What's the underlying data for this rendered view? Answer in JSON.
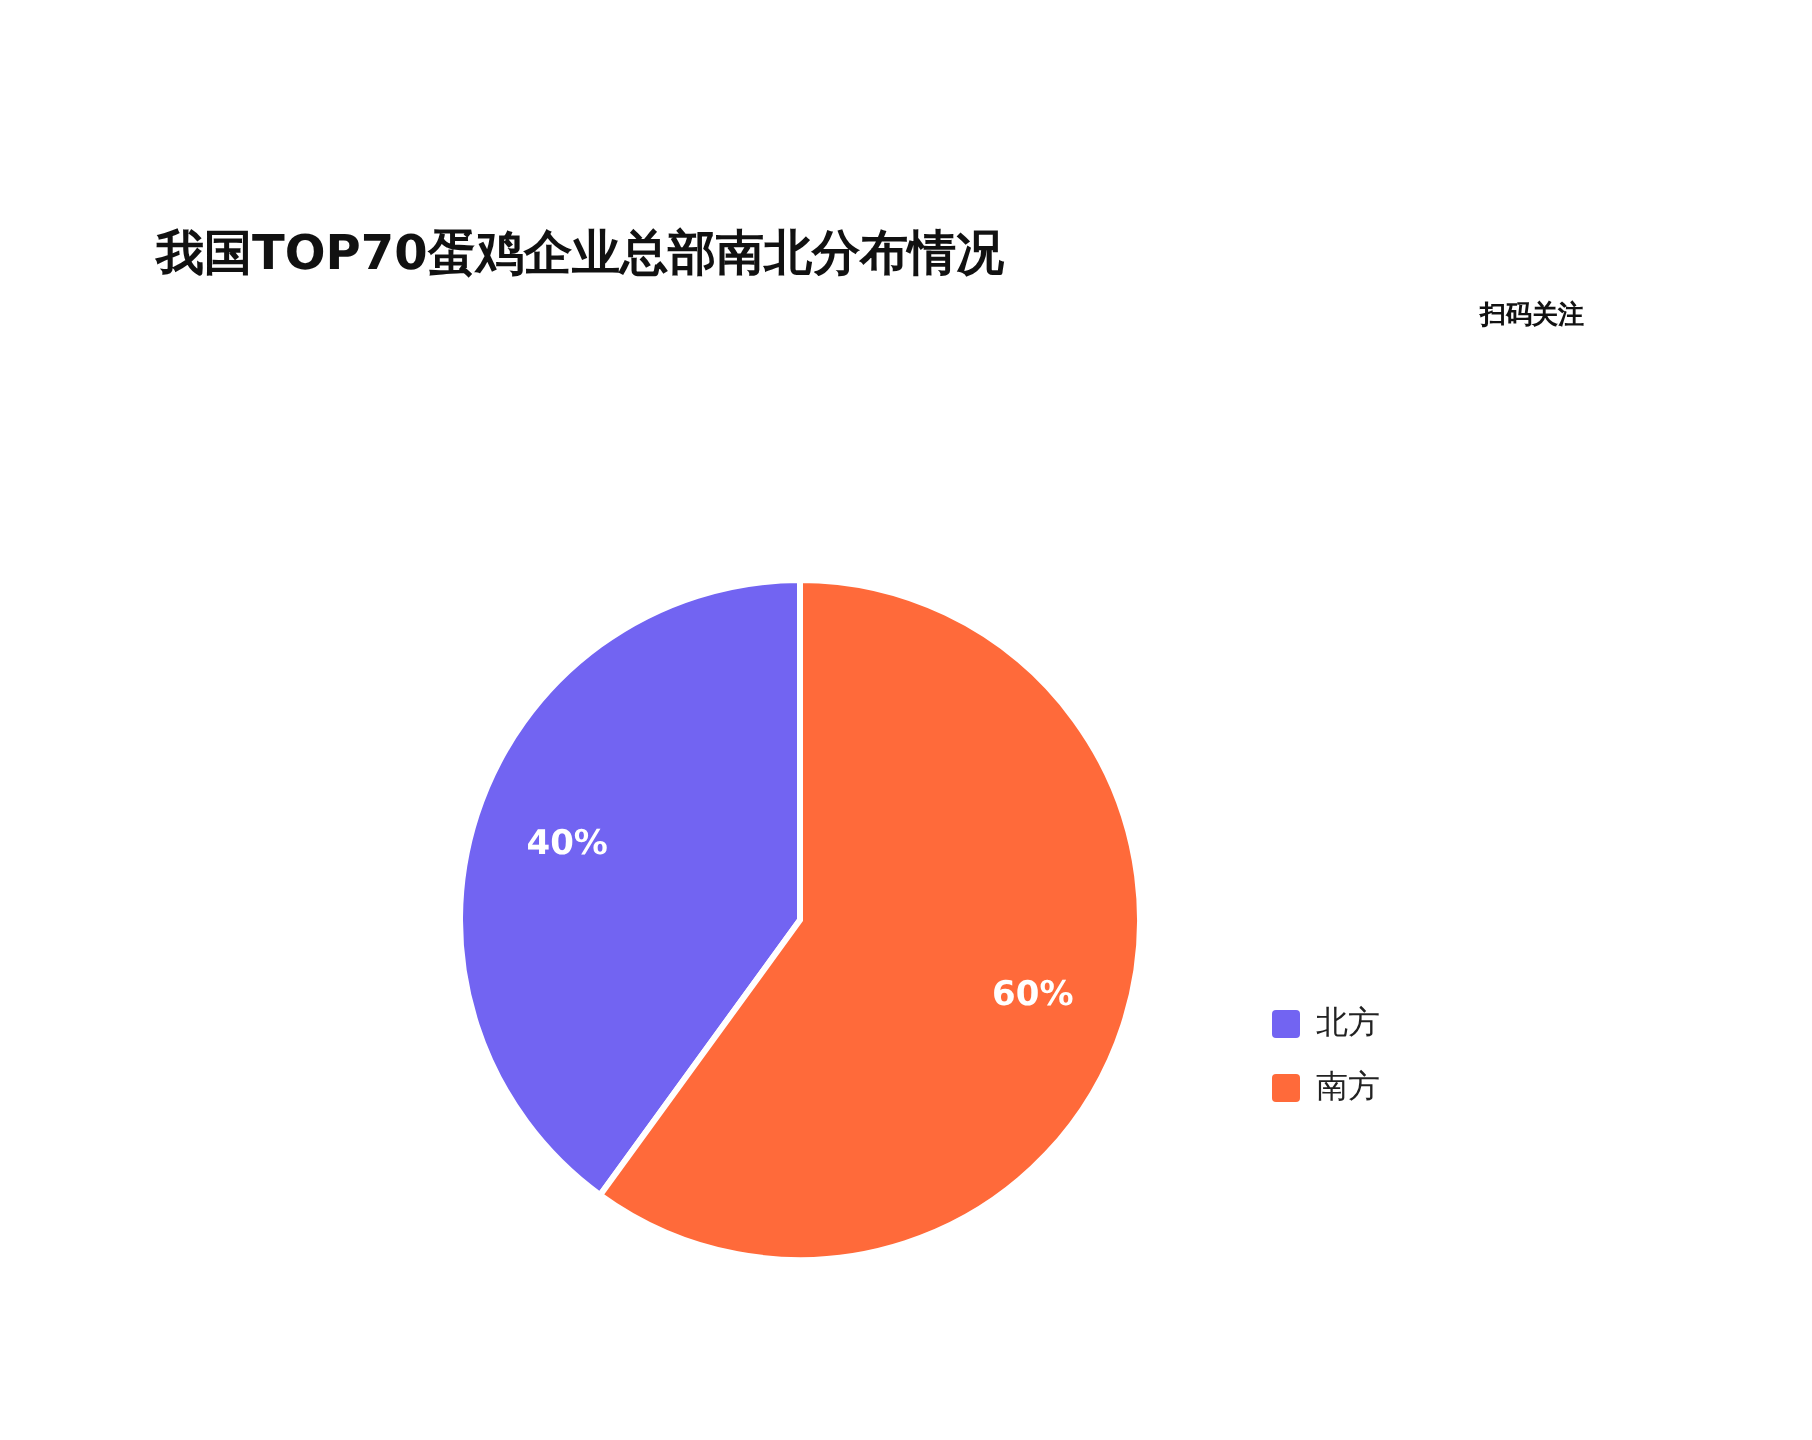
{
  "chart_data": {
    "type": "pie",
    "title": "我国TOP70蛋鸡企业总部南北分布情况",
    "categories": [
      "北方",
      "南方"
    ],
    "values": [
      40,
      60
    ],
    "colors": [
      "#7264f2",
      "#ff6a3a"
    ],
    "value_labels": [
      "40%",
      "60%"
    ],
    "legend": "right",
    "annotations": [
      "扫码关注"
    ]
  }
}
